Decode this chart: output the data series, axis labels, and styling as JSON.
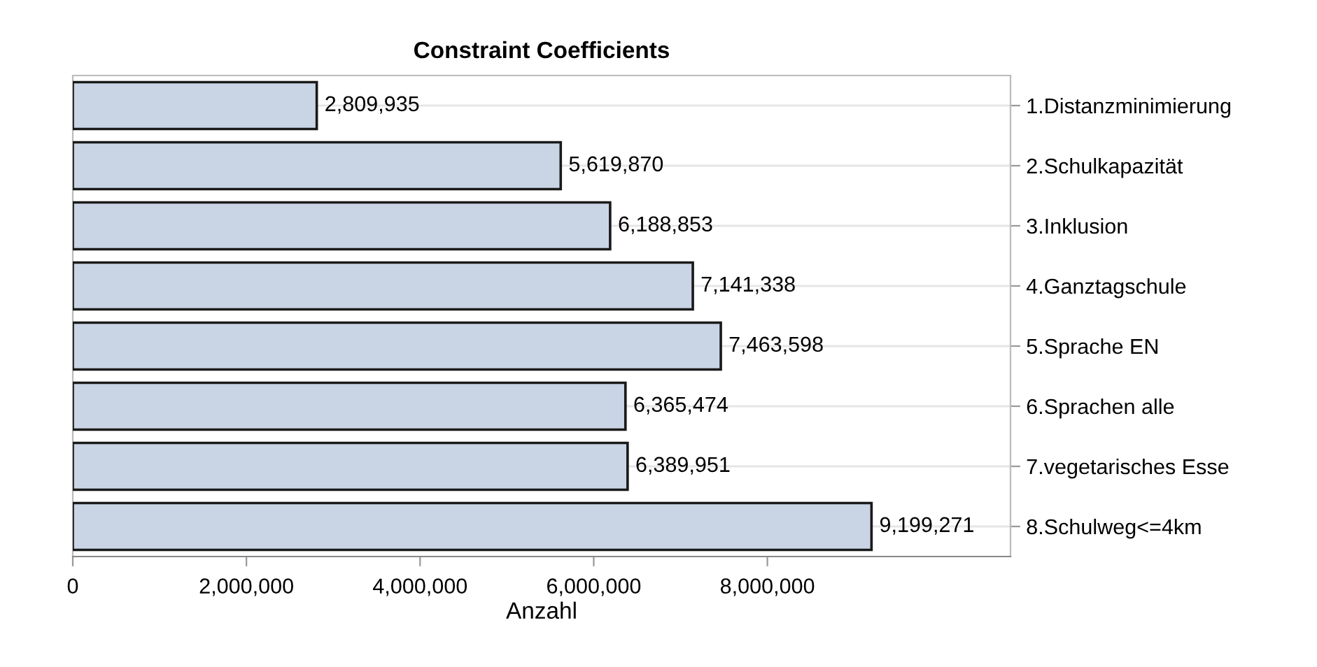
{
  "chart_data": {
    "type": "bar",
    "orientation": "horizontal",
    "title": "Constraint Coefficients",
    "xlabel": "Anzahl",
    "categories": [
      "1.Distanzminimierung",
      "2.Schulkapazität",
      "3.Inklusion",
      "4.Ganztagschule",
      "5.Sprache EN",
      "6.Sprachen alle",
      "7.vegetarisches Esse",
      "8.Schulweg<=4km"
    ],
    "values": [
      2809935,
      5619870,
      6188853,
      7141338,
      7463598,
      6365474,
      6389951,
      9199271
    ],
    "value_labels": [
      "2,809,935",
      "5,619,870",
      "6,188,853",
      "7,141,338",
      "7,463,598",
      "6,365,474",
      "6,389,951",
      "9,199,271"
    ],
    "color": "#c9d5e5",
    "grid": "y",
    "xlim": [
      0,
      10800000
    ],
    "xticks": [
      {
        "value": 0,
        "label": "0"
      },
      {
        "value": 2000000,
        "label": "2,000,000"
      },
      {
        "value": 4000000,
        "label": "4,000,000"
      },
      {
        "value": 6000000,
        "label": "6,000,000"
      },
      {
        "value": 8000000,
        "label": "8,000,000"
      }
    ]
  }
}
